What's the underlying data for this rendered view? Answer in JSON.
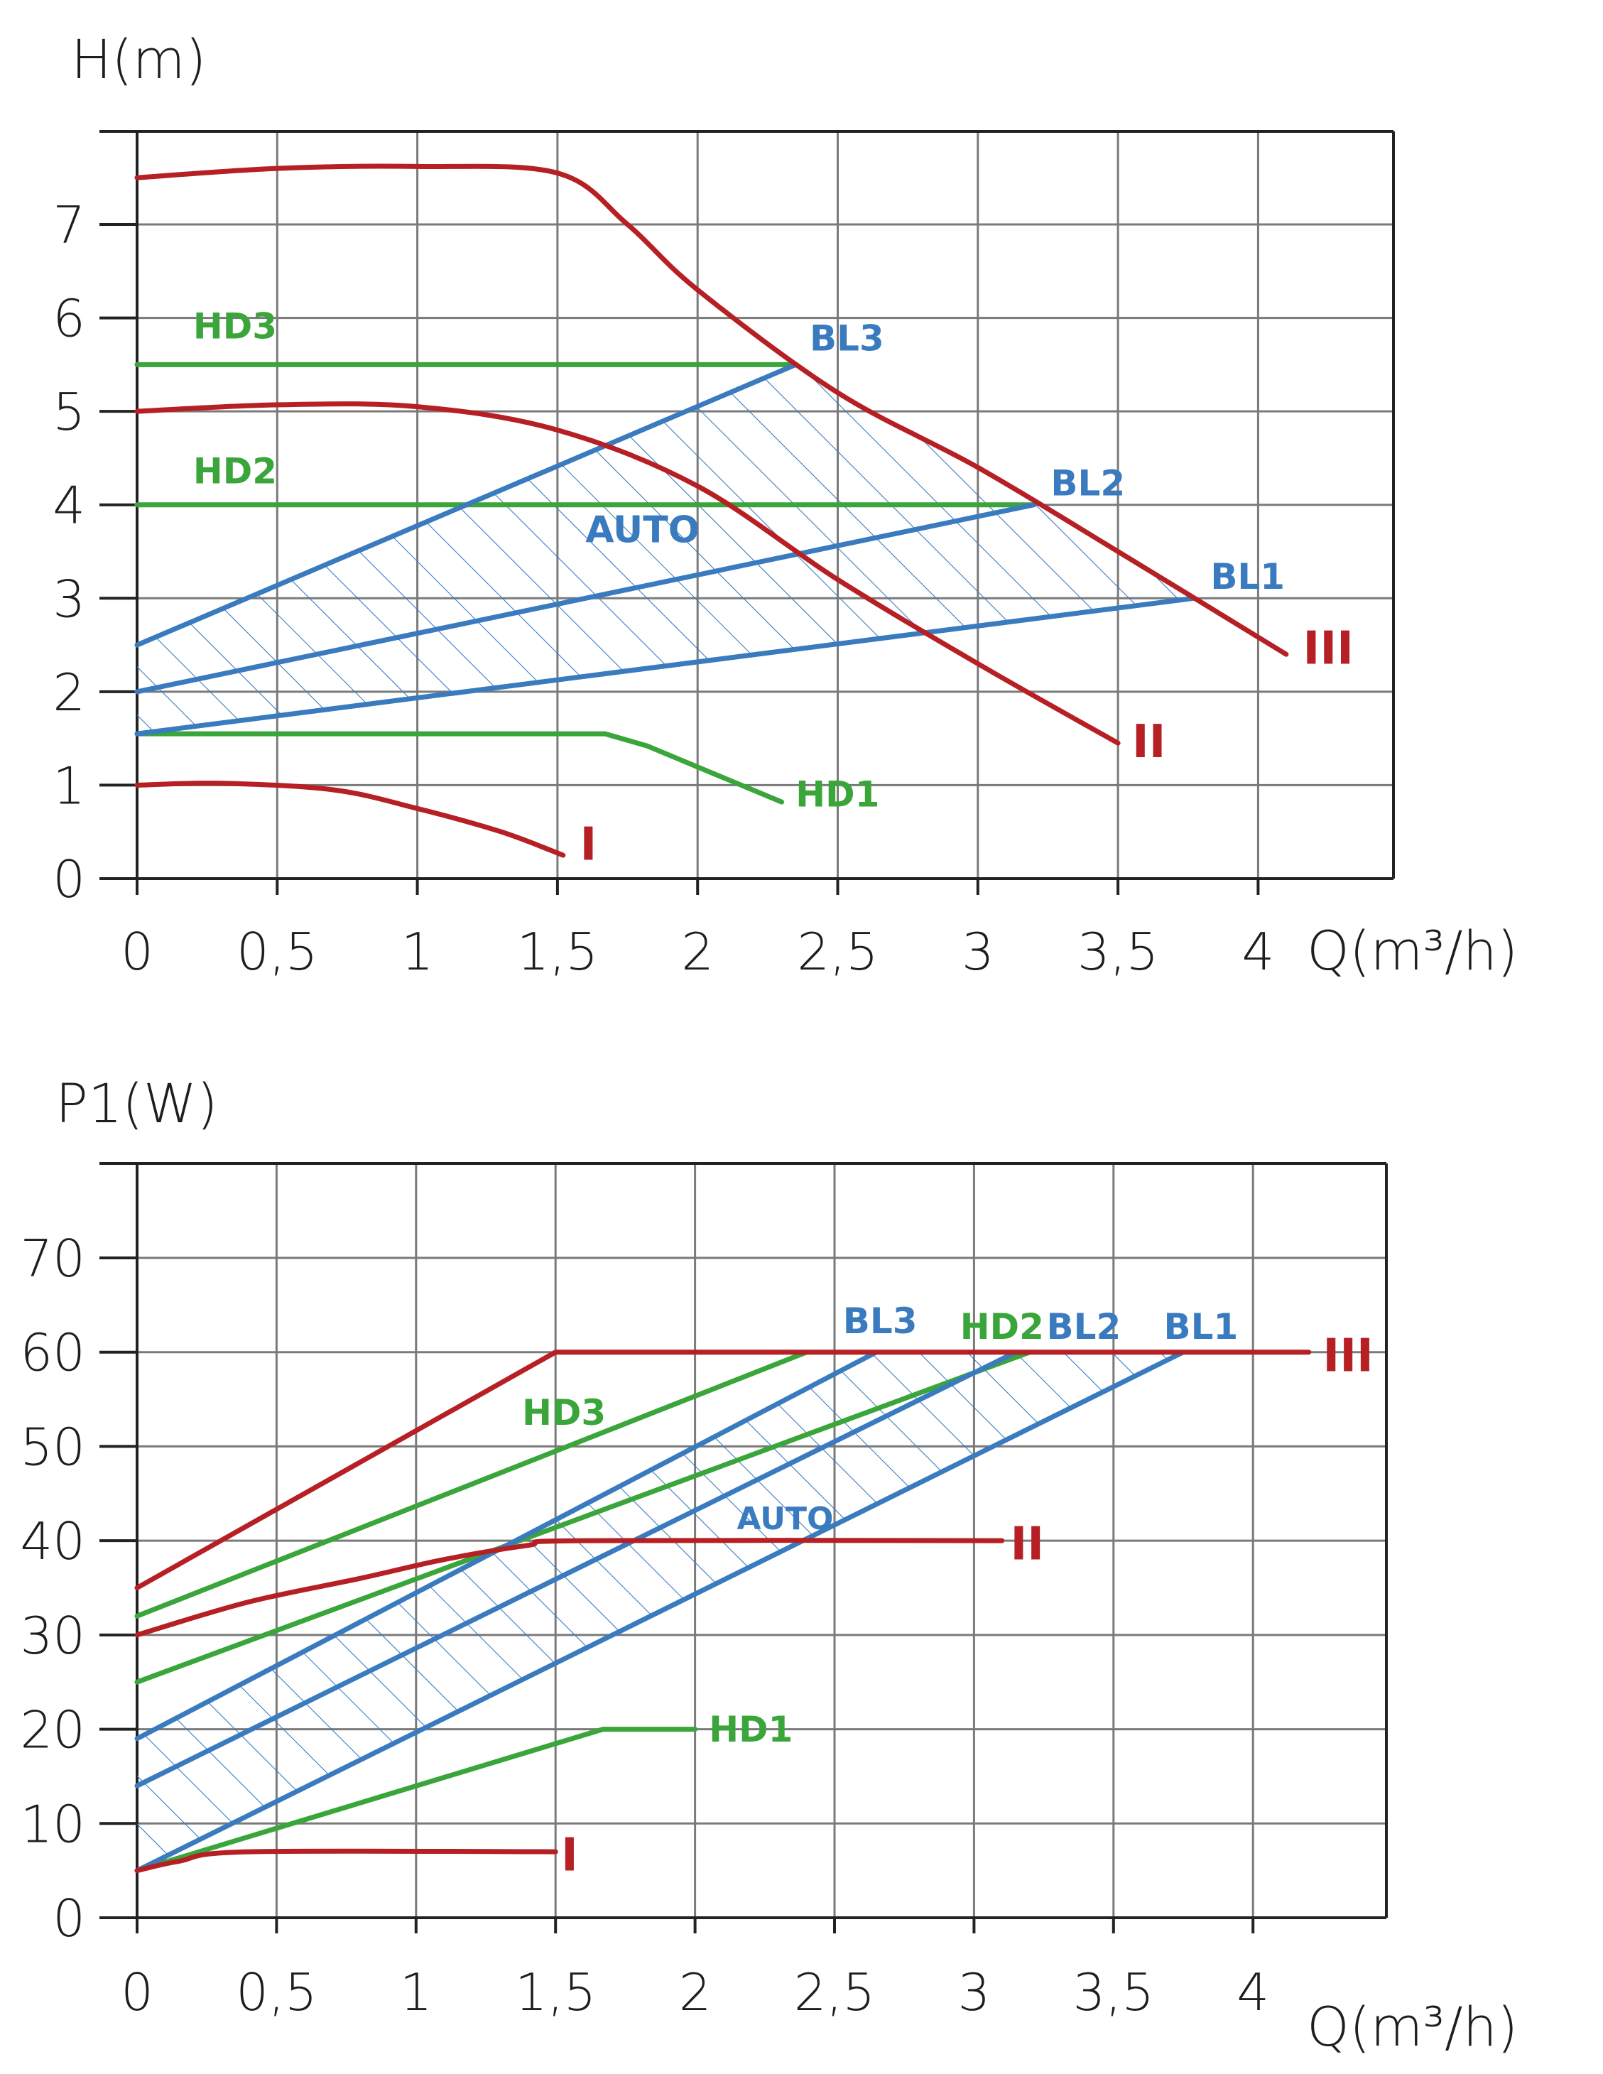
{
  "colors": {
    "red": "#b62025",
    "blue": "#3a7bbf",
    "green": "#3aa53a",
    "grid": "#7a7a7a",
    "text": "#1e1e1e"
  },
  "chart_data": [
    {
      "type": "line",
      "ylabel": "H(m)",
      "xlabel": "Q(m³/h)",
      "xlim": [
        0,
        4.5
      ],
      "ylim": [
        0,
        8
      ],
      "x_ticks": [
        "0",
        "0,5",
        "1",
        "1,5",
        "2",
        "2,5",
        "3",
        "3,5",
        "4"
      ],
      "y_ticks": [
        "0",
        "1",
        "2",
        "3",
        "4",
        "5",
        "6",
        "7"
      ],
      "grid": true,
      "hatched_region": "AUTO",
      "series": [
        {
          "name": "III",
          "color": "red",
          "x": [
            0,
            0.5,
            1.0,
            1.5,
            1.75,
            2.0,
            2.5,
            3.0,
            3.5,
            4.1
          ],
          "y": [
            7.5,
            7.6,
            7.62,
            7.55,
            7.0,
            6.3,
            5.2,
            4.4,
            3.5,
            2.4
          ]
        },
        {
          "name": "II",
          "color": "red",
          "x": [
            0,
            0.5,
            1.0,
            1.5,
            2.0,
            2.5,
            3.0,
            3.5
          ],
          "y": [
            5.0,
            5.07,
            5.05,
            4.8,
            4.2,
            3.2,
            2.3,
            1.45
          ]
        },
        {
          "name": "I",
          "color": "red",
          "x": [
            0,
            0.3,
            0.7,
            1.0,
            1.3,
            1.52
          ],
          "y": [
            1.0,
            1.02,
            0.95,
            0.75,
            0.5,
            0.25
          ]
        },
        {
          "name": "HD3",
          "color": "green",
          "x": [
            0,
            2.35
          ],
          "y": [
            5.5,
            5.5
          ]
        },
        {
          "name": "HD2",
          "color": "green",
          "x": [
            0,
            3.2
          ],
          "y": [
            4.0,
            4.0
          ]
        },
        {
          "name": "HD1",
          "color": "green",
          "x": [
            0,
            1.67,
            1.82,
            2.3
          ],
          "y": [
            1.55,
            1.55,
            1.42,
            0.82
          ]
        },
        {
          "name": "BL3",
          "color": "blue",
          "x": [
            0,
            2.35
          ],
          "y": [
            2.5,
            5.5
          ]
        },
        {
          "name": "BL2",
          "color": "blue",
          "x": [
            0,
            3.2
          ],
          "y": [
            2.0,
            4.0
          ]
        },
        {
          "name": "BL1",
          "color": "blue",
          "x": [
            0,
            3.77
          ],
          "y": [
            1.55,
            3.0
          ]
        }
      ],
      "labels": [
        {
          "text": "HD3",
          "color": "green",
          "x": 0.2,
          "y": 5.78,
          "size": 50
        },
        {
          "text": "HD2",
          "color": "green",
          "x": 0.2,
          "y": 4.23,
          "size": 50
        },
        {
          "text": "HD1",
          "color": "green",
          "x": 2.35,
          "y": 0.77,
          "size": 50
        },
        {
          "text": "BL3",
          "color": "blue",
          "x": 2.4,
          "y": 5.65,
          "size": 50
        },
        {
          "text": "BL2",
          "color": "blue",
          "x": 3.26,
          "y": 4.1,
          "size": 50
        },
        {
          "text": "BL1",
          "color": "blue",
          "x": 3.83,
          "y": 3.1,
          "size": 50
        },
        {
          "text": "AUTO",
          "color": "blue",
          "x": 1.6,
          "y": 3.6,
          "size": 52
        },
        {
          "text": "III",
          "color": "red",
          "x": 4.16,
          "y": 2.3,
          "size": 64
        },
        {
          "text": "II",
          "color": "red",
          "x": 3.55,
          "y": 1.3,
          "size": 64
        },
        {
          "text": "I",
          "color": "red",
          "x": 1.58,
          "y": 0.2,
          "size": 64
        }
      ]
    },
    {
      "type": "line",
      "ylabel": "P1(W)",
      "xlabel": "Q(m³/h)",
      "xlim": [
        0,
        4.5
      ],
      "ylim": [
        0,
        80
      ],
      "x_ticks": [
        "0",
        "0,5",
        "1",
        "1,5",
        "2",
        "2,5",
        "3",
        "3,5",
        "4"
      ],
      "y_ticks": [
        "0",
        "10",
        "20",
        "30",
        "40",
        "50",
        "60",
        "70"
      ],
      "grid": true,
      "hatched_region": "AUTO",
      "series": [
        {
          "name": "III",
          "color": "red",
          "x": [
            0,
            1.5,
            4.2
          ],
          "y": [
            35,
            60,
            60
          ]
        },
        {
          "name": "II",
          "color": "red",
          "x": [
            0,
            0.4,
            0.8,
            1.1,
            1.4,
            1.6,
            3.1
          ],
          "y": [
            30,
            33.5,
            36,
            38,
            39.5,
            40,
            40
          ]
        },
        {
          "name": "I",
          "color": "red",
          "x": [
            0,
            0.15,
            0.4,
            1.5
          ],
          "y": [
            5,
            6,
            7,
            7
          ]
        },
        {
          "name": "HD3",
          "color": "green",
          "x": [
            0,
            2.4
          ],
          "y": [
            32,
            60
          ]
        },
        {
          "name": "HD2",
          "color": "green",
          "x": [
            0,
            3.2
          ],
          "y": [
            25,
            60
          ]
        },
        {
          "name": "HD1",
          "color": "green",
          "x": [
            0,
            1.67,
            2.0
          ],
          "y": [
            5,
            20,
            20
          ]
        },
        {
          "name": "BL3",
          "color": "blue",
          "x": [
            0,
            2.65
          ],
          "y": [
            19,
            60
          ]
        },
        {
          "name": "BL2",
          "color": "blue",
          "x": [
            0,
            3.15
          ],
          "y": [
            14,
            60
          ]
        },
        {
          "name": "BL1",
          "color": "blue",
          "x": [
            0,
            3.75
          ],
          "y": [
            5,
            60
          ]
        }
      ],
      "labels": [
        {
          "text": "HD3",
          "color": "green",
          "x": 1.38,
          "y": 52.3,
          "size": 50
        },
        {
          "text": "HD2",
          "color": "green",
          "x": 2.95,
          "y": 61.4,
          "size": 50
        },
        {
          "text": "HD1",
          "color": "green",
          "x": 2.05,
          "y": 18.7,
          "size": 50
        },
        {
          "text": "BL3",
          "color": "blue",
          "x": 2.53,
          "y": 62,
          "size": 50
        },
        {
          "text": "BL2",
          "color": "blue",
          "x": 3.26,
          "y": 61.4,
          "size": 50
        },
        {
          "text": "BL1",
          "color": "blue",
          "x": 3.68,
          "y": 61.4,
          "size": 50
        },
        {
          "text": "AUTO",
          "color": "blue",
          "x": 2.15,
          "y": 41.2,
          "size": 44
        },
        {
          "text": "III",
          "color": "red",
          "x": 4.25,
          "y": 58,
          "size": 64
        },
        {
          "text": "II",
          "color": "red",
          "x": 3.13,
          "y": 38,
          "size": 64
        },
        {
          "text": "I",
          "color": "red",
          "x": 1.52,
          "y": 5,
          "size": 64
        }
      ]
    }
  ]
}
